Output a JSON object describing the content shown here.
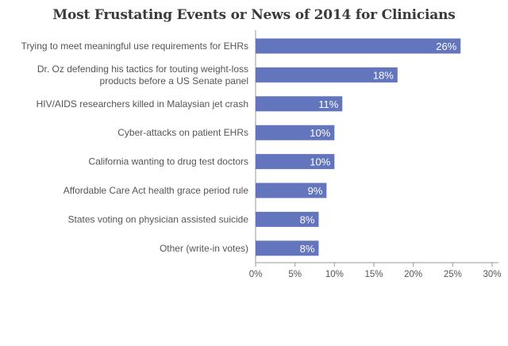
{
  "chart_data": {
    "type": "bar",
    "orientation": "horizontal",
    "title": "Most Frustating Events or News of 2014 for Clinicians",
    "categories": [
      [
        "Trying to meet meaningful use requirements for EHRs"
      ],
      [
        "Dr. Oz defending his tactics for touting weight-loss",
        "products before a US Senate panel"
      ],
      [
        "HIV/AIDS researchers killed in Malaysian jet crash"
      ],
      [
        "Cyber-attacks on patient EHRs"
      ],
      [
        "California wanting to drug test doctors"
      ],
      [
        "Affordable Care Act health grace period rule"
      ],
      [
        "States voting on physician assisted suicide"
      ],
      [
        "Other (write-in votes)"
      ]
    ],
    "values": [
      26,
      18,
      11,
      10,
      10,
      9,
      8,
      8
    ],
    "data_labels": [
      "26%",
      "18%",
      "11%",
      "10%",
      "10%",
      "9%",
      "8%",
      "8%"
    ],
    "xlim": [
      0,
      30
    ],
    "xticks": [
      0,
      5,
      10,
      15,
      20,
      25,
      30
    ],
    "xtick_labels": [
      "0%",
      "5%",
      "10%",
      "15%",
      "20%",
      "25%",
      "30%"
    ],
    "bar_color": "#6375bd",
    "grid": false,
    "legend": "none"
  }
}
